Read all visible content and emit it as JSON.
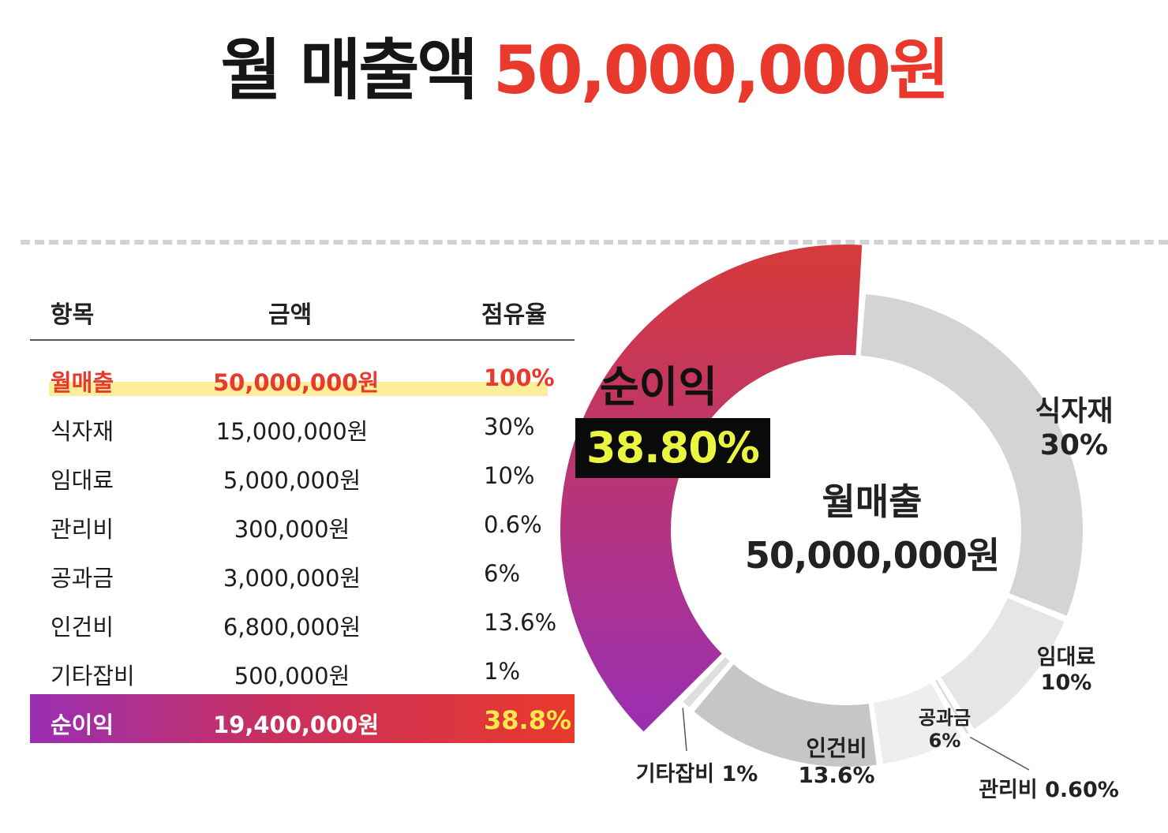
{
  "headline": {
    "label": "월 매출액",
    "value": "50,000,000원"
  },
  "table": {
    "headers": [
      "항목",
      "금액",
      "점유율"
    ],
    "rows": [
      {
        "item": "월매출",
        "amount": "50,000,000원",
        "share": "100%"
      },
      {
        "item": "식자재",
        "amount": "15,000,000원",
        "share": "30%"
      },
      {
        "item": "임대료",
        "amount": "5,000,000원",
        "share": "10%"
      },
      {
        "item": "관리비",
        "amount": "300,000원",
        "share": "0.6%"
      },
      {
        "item": "공과금",
        "amount": "3,000,000원",
        "share": "6%"
      },
      {
        "item": "인건비",
        "amount": "6,800,000원",
        "share": "13.6%"
      },
      {
        "item": "기타잡비",
        "amount": "500,000원",
        "share": "1%"
      },
      {
        "item": "순이익",
        "amount": "19,400,000원",
        "share": "38.8%"
      }
    ]
  },
  "chart_data": {
    "type": "pie",
    "center": {
      "title": "월매출",
      "value": "50,000,000원"
    },
    "slices": [
      {
        "name": "식자재",
        "value": 30,
        "label": "식자재",
        "pct_label": "30%",
        "color": "#d4d4d4"
      },
      {
        "name": "임대료",
        "value": 10,
        "label": "임대료",
        "pct_label": "10%",
        "color": "#e6e6e6"
      },
      {
        "name": "관리비",
        "value": 0.6,
        "label": "관리비 0.60%",
        "pct_label": "",
        "color": "#dcdcdc"
      },
      {
        "name": "공과금",
        "value": 6,
        "label": "공과금",
        "pct_label": "6%",
        "color": "#eeeeee"
      },
      {
        "name": "인건비",
        "value": 13.6,
        "label": "인건비",
        "pct_label": "13.6%",
        "color": "#c6c6c6"
      },
      {
        "name": "기타잡비",
        "value": 1,
        "label": "기타잡비 1%",
        "pct_label": "",
        "color": "#dedede"
      },
      {
        "name": "순이익",
        "value": 38.8,
        "label": "순이익",
        "pct_label": "38.80%",
        "color": "#d0343f"
      }
    ],
    "highlight": {
      "name": "순이익",
      "pct": "38.80%",
      "gradient": [
        "#d63a3a",
        "#9a2fb3"
      ]
    }
  },
  "colors": {
    "accent": "#e8392c",
    "highlight_text": "#e9f541",
    "row_highlight": "#fbef9b"
  }
}
